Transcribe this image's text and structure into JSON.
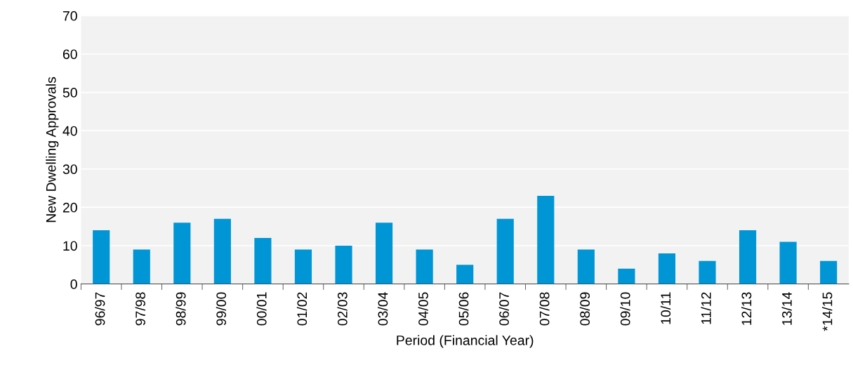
{
  "chart_data": {
    "type": "bar",
    "xlabel": "Period (Financial Year)",
    "ylabel": "New Dwelling Approvals",
    "categories": [
      "96/97",
      "97/98",
      "98/99",
      "99/00",
      "00/01",
      "01/02",
      "02/03",
      "03/04",
      "04/05",
      "05/06",
      "06/07",
      "07/08",
      "08/09",
      "09/10",
      "10/11",
      "11/12",
      "12/13",
      "13/14",
      "*14/15"
    ],
    "values": [
      14,
      9,
      16,
      17,
      12,
      9,
      10,
      16,
      9,
      5,
      17,
      23,
      9,
      4,
      8,
      6,
      14,
      11,
      6
    ],
    "color": "#0096d6",
    "ylim": [
      0,
      70
    ],
    "yticks": [
      0,
      10,
      20,
      30,
      40,
      50,
      60,
      70
    ],
    "grid": "y"
  }
}
